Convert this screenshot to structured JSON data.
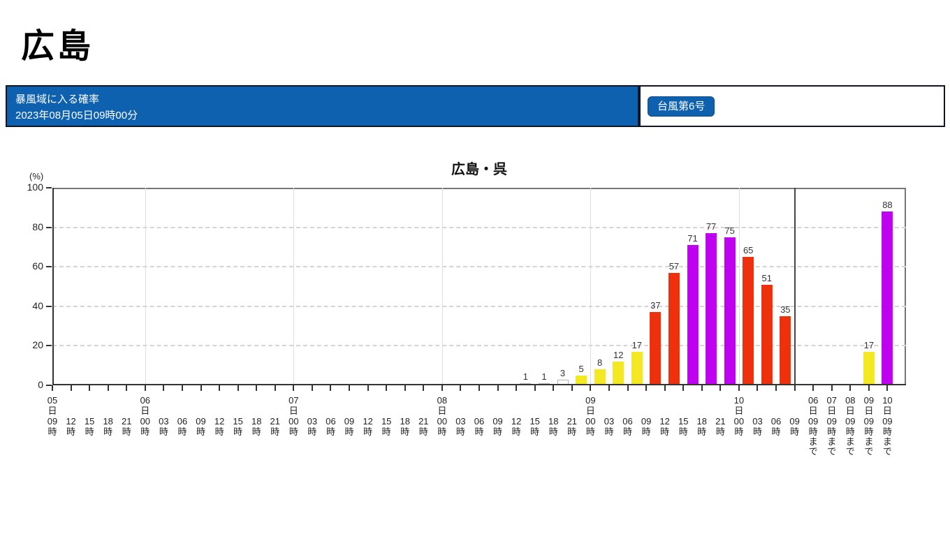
{
  "page_title": "広島",
  "header": {
    "title": "暴風域に入る確率",
    "datetime": "2023年08月05日09時00分",
    "typhoon_badge": "台風第6号",
    "banner_color": "#0e61ae"
  },
  "chart_data": {
    "type": "bar",
    "title": "広島・呉",
    "ylabel": "(%)",
    "ylim": [
      0,
      100
    ],
    "yticks": [
      0,
      20,
      40,
      60,
      80,
      100
    ],
    "grid": {
      "horizontal": "dashed at 20/40/60/80",
      "vertical": "solid at each 00時 day boundary"
    },
    "legend_position": "none",
    "colors": {
      "white": "#ffffff",
      "white_border": "#b5b5b5",
      "yellow": "#f3e822",
      "red": "#ee300c",
      "purple": "#c000f0",
      "axis": "#333333",
      "grid": "#dddddd"
    },
    "hourly_ticks": [
      {
        "day": "05",
        "hour": "09"
      },
      {
        "hour": "12"
      },
      {
        "hour": "15"
      },
      {
        "hour": "18"
      },
      {
        "hour": "21"
      },
      {
        "day": "06",
        "hour": "00"
      },
      {
        "hour": "03"
      },
      {
        "hour": "06"
      },
      {
        "hour": "09"
      },
      {
        "hour": "12"
      },
      {
        "hour": "15"
      },
      {
        "hour": "18"
      },
      {
        "hour": "21"
      },
      {
        "day": "07",
        "hour": "00"
      },
      {
        "hour": "03"
      },
      {
        "hour": "06"
      },
      {
        "hour": "09"
      },
      {
        "hour": "12"
      },
      {
        "hour": "15"
      },
      {
        "hour": "18"
      },
      {
        "hour": "21"
      },
      {
        "day": "08",
        "hour": "00"
      },
      {
        "hour": "03"
      },
      {
        "hour": "06"
      },
      {
        "hour": "09"
      },
      {
        "hour": "12"
      },
      {
        "hour": "15"
      },
      {
        "hour": "18"
      },
      {
        "hour": "21"
      },
      {
        "day": "09",
        "hour": "00"
      },
      {
        "hour": "03"
      },
      {
        "hour": "06"
      },
      {
        "hour": "09"
      },
      {
        "hour": "12"
      },
      {
        "hour": "15"
      },
      {
        "hour": "18"
      },
      {
        "hour": "21"
      },
      {
        "day": "10",
        "hour": "00"
      },
      {
        "hour": "03"
      },
      {
        "hour": "06"
      },
      {
        "hour": "09"
      }
    ],
    "hourly_bars": [
      {
        "start_tick": 25,
        "value": 1,
        "color": "white"
      },
      {
        "start_tick": 26,
        "value": 1,
        "color": "white"
      },
      {
        "start_tick": 27,
        "value": 3,
        "color": "white"
      },
      {
        "start_tick": 28,
        "value": 5,
        "color": "yellow"
      },
      {
        "start_tick": 29,
        "value": 8,
        "color": "yellow"
      },
      {
        "start_tick": 30,
        "value": 12,
        "color": "yellow"
      },
      {
        "start_tick": 31,
        "value": 17,
        "color": "yellow"
      },
      {
        "start_tick": 32,
        "value": 37,
        "color": "red"
      },
      {
        "start_tick": 33,
        "value": 57,
        "color": "red"
      },
      {
        "start_tick": 34,
        "value": 71,
        "color": "purple"
      },
      {
        "start_tick": 35,
        "value": 77,
        "color": "purple"
      },
      {
        "start_tick": 36,
        "value": 75,
        "color": "purple"
      },
      {
        "start_tick": 37,
        "value": 65,
        "color": "red"
      },
      {
        "start_tick": 38,
        "value": 51,
        "color": "red"
      },
      {
        "start_tick": 39,
        "value": 35,
        "color": "red"
      }
    ],
    "cumulative_ticks": [
      {
        "day": "06",
        "hour": "09",
        "suffix": "まで"
      },
      {
        "day": "07",
        "hour": "09",
        "suffix": "まで"
      },
      {
        "day": "08",
        "hour": "09",
        "suffix": "まで"
      },
      {
        "day": "09",
        "hour": "09",
        "suffix": "まで"
      },
      {
        "day": "10",
        "hour": "09",
        "suffix": "まで"
      }
    ],
    "cumulative_bars": [
      {
        "tick_index": 3,
        "value": 17,
        "color": "yellow"
      },
      {
        "tick_index": 4,
        "value": 88,
        "color": "purple"
      }
    ]
  }
}
